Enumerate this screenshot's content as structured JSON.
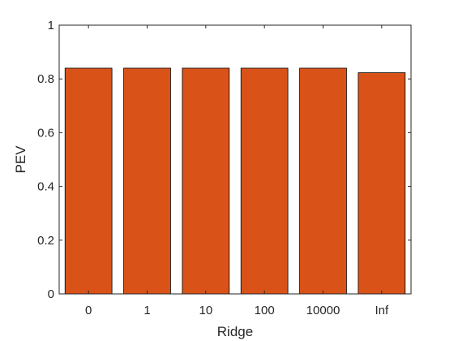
{
  "chart_data": {
    "type": "bar",
    "title": "",
    "xlabel": "Ridge",
    "ylabel": "PEV",
    "categories": [
      "0",
      "1",
      "10",
      "100",
      "10000",
      "Inf"
    ],
    "values": [
      0.84,
      0.84,
      0.84,
      0.84,
      0.84,
      0.823
    ],
    "ylim": [
      0,
      1
    ],
    "yticks": [
      0,
      0.2,
      0.4,
      0.6,
      0.8,
      1
    ],
    "ytick_labels": [
      "0",
      "0.2",
      "0.4",
      "0.6",
      "0.8",
      "1"
    ],
    "bar_color": "#D95319",
    "edge_color": "#000000",
    "grid": false,
    "legend": "none"
  }
}
